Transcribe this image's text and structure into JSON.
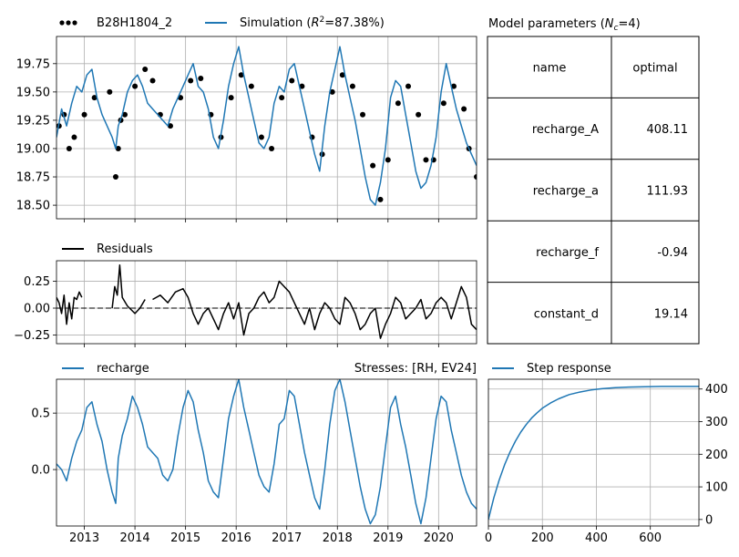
{
  "chart_data": [
    {
      "id": "heads",
      "type": "line",
      "title": "",
      "xlabel": "",
      "ylabel": "",
      "xlim": [
        2012.45,
        2020.75
      ],
      "ylim": [
        18.38,
        19.99
      ],
      "y_ticks": [
        18.5,
        18.75,
        19.0,
        19.25,
        19.5,
        19.75
      ],
      "y_tick_labels": [
        "18.50",
        "18.75",
        "19.00",
        "19.25",
        "19.50",
        "19.75"
      ],
      "grid": true,
      "legend_position": "above",
      "series": [
        {
          "name": "B28H1804_2",
          "style": "points",
          "color": "#000000",
          "x": [
            2012.5,
            2012.6,
            2012.7,
            2012.8,
            2013.0,
            2013.2,
            2013.5,
            2013.62,
            2013.67,
            2013.72,
            2013.8,
            2014.0,
            2014.2,
            2014.35,
            2014.5,
            2014.7,
            2014.9,
            2015.1,
            2015.3,
            2015.5,
            2015.7,
            2015.9,
            2016.1,
            2016.3,
            2016.5,
            2016.7,
            2016.9,
            2017.1,
            2017.3,
            2017.5,
            2017.7,
            2017.9,
            2018.1,
            2018.3,
            2018.5,
            2018.7,
            2018.85,
            2019.0,
            2019.2,
            2019.4,
            2019.6,
            2019.75,
            2019.9,
            2020.1,
            2020.3,
            2020.5,
            2020.6,
            2020.75
          ],
          "y": [
            19.2,
            19.3,
            19.0,
            19.1,
            19.3,
            19.45,
            19.5,
            18.75,
            19.0,
            19.25,
            19.3,
            19.55,
            19.7,
            19.6,
            19.3,
            19.2,
            19.45,
            19.6,
            19.62,
            19.3,
            19.1,
            19.45,
            19.65,
            19.55,
            19.1,
            19.0,
            19.45,
            19.6,
            19.55,
            19.1,
            18.95,
            19.5,
            19.65,
            19.55,
            19.3,
            18.85,
            18.55,
            18.9,
            19.4,
            19.55,
            19.3,
            18.9,
            18.9,
            19.4,
            19.55,
            19.35,
            19.0,
            18.75
          ]
        },
        {
          "name": "Simulation ($R^2$=87.38%)",
          "style": "line",
          "color": "#1f77b4",
          "x": [
            2012.45,
            2012.55,
            2012.65,
            2012.75,
            2012.85,
            2012.95,
            2013.05,
            2013.15,
            2013.25,
            2013.35,
            2013.45,
            2013.55,
            2013.62,
            2013.67,
            2013.75,
            2013.85,
            2013.95,
            2014.05,
            2014.15,
            2014.25,
            2014.35,
            2014.45,
            2014.55,
            2014.65,
            2014.75,
            2014.85,
            2014.95,
            2015.05,
            2015.15,
            2015.25,
            2015.35,
            2015.45,
            2015.55,
            2015.65,
            2015.75,
            2015.85,
            2015.95,
            2016.05,
            2016.15,
            2016.25,
            2016.35,
            2016.45,
            2016.55,
            2016.65,
            2016.75,
            2016.85,
            2016.95,
            2017.05,
            2017.15,
            2017.25,
            2017.35,
            2017.45,
            2017.55,
            2017.65,
            2017.75,
            2017.85,
            2017.95,
            2018.05,
            2018.15,
            2018.25,
            2018.35,
            2018.45,
            2018.55,
            2018.65,
            2018.75,
            2018.85,
            2018.95,
            2019.05,
            2019.15,
            2019.25,
            2019.35,
            2019.45,
            2019.55,
            2019.65,
            2019.75,
            2019.85,
            2019.95,
            2020.05,
            2020.15,
            2020.25,
            2020.35,
            2020.45,
            2020.55,
            2020.65,
            2020.75
          ],
          "y": [
            19.1,
            19.35,
            19.2,
            19.4,
            19.55,
            19.5,
            19.65,
            19.7,
            19.45,
            19.3,
            19.2,
            19.1,
            19.0,
            19.2,
            19.3,
            19.5,
            19.6,
            19.65,
            19.55,
            19.4,
            19.35,
            19.3,
            19.25,
            19.2,
            19.35,
            19.45,
            19.55,
            19.65,
            19.75,
            19.55,
            19.5,
            19.35,
            19.1,
            19.0,
            19.25,
            19.55,
            19.75,
            19.9,
            19.65,
            19.45,
            19.25,
            19.05,
            19.0,
            19.1,
            19.4,
            19.55,
            19.5,
            19.7,
            19.75,
            19.55,
            19.35,
            19.15,
            18.95,
            18.8,
            19.2,
            19.5,
            19.7,
            19.9,
            19.65,
            19.45,
            19.25,
            19.0,
            18.75,
            18.55,
            18.5,
            18.7,
            19.0,
            19.45,
            19.6,
            19.55,
            19.3,
            19.05,
            18.8,
            18.65,
            18.7,
            18.85,
            19.1,
            19.5,
            19.75,
            19.55,
            19.35,
            19.2,
            19.05,
            18.95,
            18.85
          ]
        }
      ]
    },
    {
      "id": "residuals",
      "type": "line",
      "title": "",
      "xlabel": "",
      "ylabel": "",
      "xlim": [
        2012.45,
        2020.75
      ],
      "ylim": [
        -0.33,
        0.44
      ],
      "y_ticks": [
        -0.25,
        0.0,
        0.25
      ],
      "y_tick_labels": [
        "−0.25",
        "0.00",
        "0.25"
      ],
      "grid": true,
      "legend_position": "above",
      "zero_line": "dashed",
      "series": [
        {
          "name": "Residuals",
          "color": "#000000",
          "segments": [
            {
              "x": [
                2012.45,
                2012.5,
                2012.55,
                2012.6,
                2012.65,
                2012.7,
                2012.75,
                2012.8,
                2012.85,
                2012.9,
                2012.95
              ],
              "y": [
                0.1,
                0.05,
                -0.05,
                0.12,
                -0.15,
                0.05,
                -0.1,
                0.1,
                0.08,
                0.15,
                0.1
              ]
            },
            {
              "x": [
                2013.55,
                2013.6,
                2013.65,
                2013.7,
                2013.75,
                2013.85,
                2014.0,
                2014.1,
                2014.2
              ],
              "y": [
                0.0,
                0.2,
                0.12,
                0.4,
                0.1,
                0.02,
                -0.05,
                0.0,
                0.08
              ]
            },
            {
              "x": [
                2014.35,
                2014.5,
                2014.65,
                2014.8,
                2014.95,
                2015.05,
                2015.15,
                2015.25,
                2015.35,
                2015.45,
                2015.55,
                2015.65,
                2015.75,
                2015.85,
                2015.95,
                2016.05,
                2016.15,
                2016.25,
                2016.35,
                2016.45,
                2016.55,
                2016.65,
                2016.75,
                2016.85,
                2016.95,
                2017.05,
                2017.15,
                2017.25,
                2017.35,
                2017.45,
                2017.55,
                2017.65,
                2017.75,
                2017.85,
                2017.95,
                2018.05,
                2018.15,
                2018.25,
                2018.35,
                2018.45,
                2018.55,
                2018.65,
                2018.75,
                2018.85,
                2018.95,
                2019.05,
                2019.15,
                2019.25,
                2019.35,
                2019.45,
                2019.55,
                2019.65,
                2019.75,
                2019.85,
                2019.95,
                2020.05,
                2020.15,
                2020.25,
                2020.35,
                2020.45,
                2020.55,
                2020.65,
                2020.75
              ],
              "y": [
                0.08,
                0.12,
                0.05,
                0.15,
                0.18,
                0.1,
                -0.05,
                -0.15,
                -0.05,
                0.0,
                -0.1,
                -0.2,
                -0.05,
                0.05,
                -0.1,
                0.05,
                -0.25,
                -0.05,
                0.0,
                0.1,
                0.15,
                0.05,
                0.1,
                0.25,
                0.2,
                0.15,
                0.05,
                -0.05,
                -0.15,
                0.0,
                -0.2,
                -0.05,
                0.05,
                0.0,
                -0.1,
                -0.15,
                0.1,
                0.05,
                -0.05,
                -0.2,
                -0.15,
                -0.05,
                0.0,
                -0.28,
                -0.15,
                -0.05,
                0.1,
                0.05,
                -0.1,
                -0.05,
                0.0,
                0.08,
                -0.1,
                -0.05,
                0.05,
                0.1,
                0.05,
                -0.1,
                0.05,
                0.2,
                0.1,
                -0.15,
                -0.2
              ]
            }
          ]
        }
      ]
    },
    {
      "id": "stresses",
      "type": "line",
      "title": "Stresses: [RH, EV24]",
      "xlabel": "",
      "ylabel": "",
      "xlim": [
        2012.45,
        2020.75
      ],
      "ylim": [
        -0.5,
        0.8
      ],
      "x_ticks": [
        2013,
        2014,
        2015,
        2016,
        2017,
        2018,
        2019,
        2020
      ],
      "x_tick_labels": [
        "2013",
        "2014",
        "2015",
        "2016",
        "2017",
        "2018",
        "2019",
        "2020"
      ],
      "y_ticks": [
        0.0,
        0.5
      ],
      "y_tick_labels": [
        "0.0",
        "0.5"
      ],
      "grid": true,
      "legend_position": "above",
      "series": [
        {
          "name": "recharge",
          "color": "#1f77b4",
          "x": [
            2012.45,
            2012.55,
            2012.65,
            2012.75,
            2012.85,
            2012.95,
            2013.05,
            2013.15,
            2013.25,
            2013.35,
            2013.45,
            2013.55,
            2013.62,
            2013.67,
            2013.75,
            2013.85,
            2013.95,
            2014.05,
            2014.15,
            2014.25,
            2014.35,
            2014.45,
            2014.55,
            2014.65,
            2014.75,
            2014.85,
            2014.95,
            2015.05,
            2015.15,
            2015.25,
            2015.35,
            2015.45,
            2015.55,
            2015.65,
            2015.75,
            2015.85,
            2015.95,
            2016.05,
            2016.15,
            2016.25,
            2016.35,
            2016.45,
            2016.55,
            2016.65,
            2016.75,
            2016.85,
            2016.95,
            2017.05,
            2017.15,
            2017.25,
            2017.35,
            2017.45,
            2017.55,
            2017.65,
            2017.75,
            2017.85,
            2017.95,
            2018.05,
            2018.15,
            2018.25,
            2018.35,
            2018.45,
            2018.55,
            2018.65,
            2018.75,
            2018.85,
            2018.95,
            2019.05,
            2019.15,
            2019.25,
            2019.35,
            2019.45,
            2019.55,
            2019.65,
            2019.75,
            2019.85,
            2019.95,
            2020.05,
            2020.15,
            2020.25,
            2020.35,
            2020.45,
            2020.55,
            2020.65,
            2020.75
          ],
          "y": [
            0.05,
            0.0,
            -0.1,
            0.1,
            0.25,
            0.35,
            0.55,
            0.6,
            0.4,
            0.25,
            0.0,
            -0.2,
            -0.3,
            0.1,
            0.3,
            0.45,
            0.65,
            0.55,
            0.4,
            0.2,
            0.15,
            0.1,
            -0.05,
            -0.1,
            0.0,
            0.3,
            0.55,
            0.7,
            0.6,
            0.35,
            0.15,
            -0.1,
            -0.2,
            -0.25,
            0.1,
            0.45,
            0.65,
            0.8,
            0.55,
            0.35,
            0.15,
            -0.05,
            -0.15,
            -0.2,
            0.05,
            0.4,
            0.45,
            0.7,
            0.65,
            0.4,
            0.15,
            -0.05,
            -0.25,
            -0.35,
            0.0,
            0.4,
            0.7,
            0.8,
            0.6,
            0.35,
            0.1,
            -0.15,
            -0.35,
            -0.48,
            -0.4,
            -0.15,
            0.2,
            0.55,
            0.65,
            0.4,
            0.2,
            -0.05,
            -0.3,
            -0.48,
            -0.25,
            0.1,
            0.45,
            0.65,
            0.6,
            0.35,
            0.15,
            -0.05,
            -0.2,
            -0.3,
            -0.35
          ]
        }
      ]
    },
    {
      "id": "step_response",
      "type": "line",
      "title": "",
      "xlabel": "",
      "ylabel": "",
      "xlim": [
        0,
        780
      ],
      "ylim": [
        -20,
        430
      ],
      "x_ticks": [
        0,
        200,
        400,
        600
      ],
      "x_tick_labels": [
        "0",
        "200",
        "400",
        "600"
      ],
      "y_ticks": [
        0,
        100,
        200,
        300,
        400
      ],
      "y_tick_labels": [
        "0",
        "100",
        "200",
        "300",
        "400"
      ],
      "y_axis_side": "right",
      "grid": true,
      "legend_position": "above",
      "series": [
        {
          "name": "Step response",
          "color": "#1f77b4",
          "x": [
            0,
            20,
            40,
            60,
            80,
            100,
            120,
            140,
            160,
            180,
            200,
            230,
            260,
            300,
            340,
            380,
            420,
            470,
            520,
            580,
            640,
            700,
            780
          ],
          "y": [
            0,
            66,
            121,
            168,
            207,
            240,
            268,
            291,
            311,
            327,
            341,
            357,
            370,
            383,
            391,
            397,
            401,
            404,
            406,
            407,
            408,
            408,
            408
          ]
        }
      ]
    }
  ],
  "parameters_table": {
    "title": "Model parameters ($N_c$=4)",
    "header": [
      "name",
      "optimal"
    ],
    "rows": [
      [
        "recharge_A",
        "408.11"
      ],
      [
        "recharge_a",
        "111.93"
      ],
      [
        "recharge_f",
        "-0.94"
      ],
      [
        "constant_d",
        "19.14"
      ]
    ]
  },
  "colors": {
    "simulation": "#1f77b4",
    "observations": "#000000",
    "grid": "#b0b0b0"
  }
}
